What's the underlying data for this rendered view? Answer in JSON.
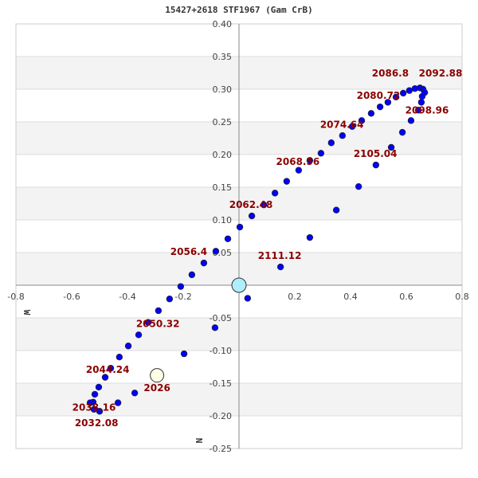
{
  "chart_data": {
    "type": "scatter",
    "title": "15427+2618 STF1967 (Gam CrB)",
    "xlim": [
      -0.8,
      0.8
    ],
    "ylim": [
      -0.25,
      0.4
    ],
    "x_ticks": [
      "-0.8",
      "-0.6",
      "-0.4",
      "-0.2",
      "0.2",
      "0.4",
      "0.6",
      "0.8"
    ],
    "x_tick_values": [
      -0.8,
      -0.6,
      -0.4,
      -0.2,
      0.2,
      0.4,
      0.6,
      0.8
    ],
    "y_ticks": [
      "0.40",
      "0.35",
      "0.30",
      "0.25",
      "0.20",
      "0.15",
      "0.10",
      "0.05",
      "-0.05",
      "-0.10",
      "-0.15",
      "-0.20",
      "-0.25"
    ],
    "y_tick_values": [
      0.4,
      0.35,
      0.3,
      0.25,
      0.2,
      0.15,
      0.1,
      0.05,
      -0.05,
      -0.1,
      -0.15,
      -0.2,
      -0.25
    ],
    "x_axis_label": "W",
    "y_axis_label": "N",
    "grid": "alternating horizontal bands",
    "colors": {
      "point": "#0000ff",
      "label": "#8b0000",
      "primary": "#aeeeff",
      "current": "#ffffe6",
      "band": "#f3f3f3"
    },
    "primary": [
      0,
      0
    ],
    "current_position": {
      "label": "2026",
      "x": -0.294,
      "y": -0.138
    },
    "points": [
      [
        -0.523,
        -0.179
      ],
      [
        -0.517,
        -0.167
      ],
      [
        -0.503,
        -0.156
      ],
      [
        -0.48,
        -0.141
      ],
      [
        -0.46,
        -0.127
      ],
      [
        -0.429,
        -0.11
      ],
      [
        -0.397,
        -0.093
      ],
      [
        -0.36,
        -0.076
      ],
      [
        -0.326,
        -0.057
      ],
      [
        -0.289,
        -0.039
      ],
      [
        -0.249,
        -0.021
      ],
      [
        -0.209,
        -0.002
      ],
      [
        -0.169,
        0.016
      ],
      [
        -0.126,
        0.034
      ],
      [
        -0.083,
        0.052
      ],
      [
        -0.04,
        0.071
      ],
      [
        0.003,
        0.089
      ],
      [
        0.046,
        0.106
      ],
      [
        0.089,
        0.123
      ],
      [
        0.129,
        0.141
      ],
      [
        0.171,
        0.159
      ],
      [
        0.214,
        0.176
      ],
      [
        0.254,
        0.191
      ],
      [
        0.294,
        0.202
      ],
      [
        0.331,
        0.218
      ],
      [
        0.371,
        0.229
      ],
      [
        0.406,
        0.243
      ],
      [
        0.44,
        0.252
      ],
      [
        0.474,
        0.263
      ],
      [
        0.506,
        0.273
      ],
      [
        0.534,
        0.28
      ],
      [
        0.563,
        0.288
      ],
      [
        0.589,
        0.294
      ],
      [
        0.611,
        0.298
      ],
      [
        0.631,
        0.301
      ],
      [
        0.649,
        0.302
      ],
      [
        0.66,
        0.3
      ],
      [
        0.666,
        0.295
      ],
      [
        0.657,
        0.289
      ],
      [
        0.654,
        0.28
      ],
      [
        0.643,
        0.268
      ],
      [
        0.617,
        0.252
      ],
      [
        0.586,
        0.234
      ],
      [
        0.546,
        0.211
      ],
      [
        0.491,
        0.184
      ],
      [
        0.429,
        0.151
      ],
      [
        0.349,
        0.115
      ],
      [
        0.254,
        0.073
      ],
      [
        0.149,
        0.028
      ],
      [
        0.031,
        -0.02
      ],
      [
        -0.086,
        -0.065
      ],
      [
        -0.197,
        -0.105
      ],
      [
        -0.286,
        -0.139
      ],
      [
        -0.374,
        -0.165
      ],
      [
        -0.434,
        -0.18
      ],
      [
        -0.5,
        -0.193
      ],
      [
        -0.52,
        -0.19
      ],
      [
        -0.534,
        -0.18
      ]
    ],
    "epoch_labels": [
      {
        "text": "2032.08",
        "x": -0.511,
        "y": -0.211
      },
      {
        "text": "2038.16",
        "x": -0.52,
        "y": -0.187
      },
      {
        "text": "2044.24",
        "x": -0.471,
        "y": -0.129
      },
      {
        "text": "2050.32",
        "x": -0.291,
        "y": -0.059
      },
      {
        "text": "2056.4",
        "x": -0.123,
        "y": 0.051
      },
      {
        "text": "2062.48",
        "x": 0.043,
        "y": 0.123
      },
      {
        "text": "2068.56",
        "x": 0.211,
        "y": 0.189
      },
      {
        "text": "2074.64",
        "x": 0.369,
        "y": 0.246
      },
      {
        "text": "2080.72",
        "x": 0.517,
        "y": 0.29
      },
      {
        "text": "2086.8",
        "x": 0.617,
        "y": 0.317
      },
      {
        "text": "2092.88",
        "x": 0.66,
        "y": 0.317
      },
      {
        "text": "2098.96",
        "x": 0.64,
        "y": 0.285
      },
      {
        "text": "2105.04",
        "x": 0.489,
        "y": 0.201
      },
      {
        "text": "2111.12",
        "x": 0.146,
        "y": 0.045
      }
    ]
  }
}
